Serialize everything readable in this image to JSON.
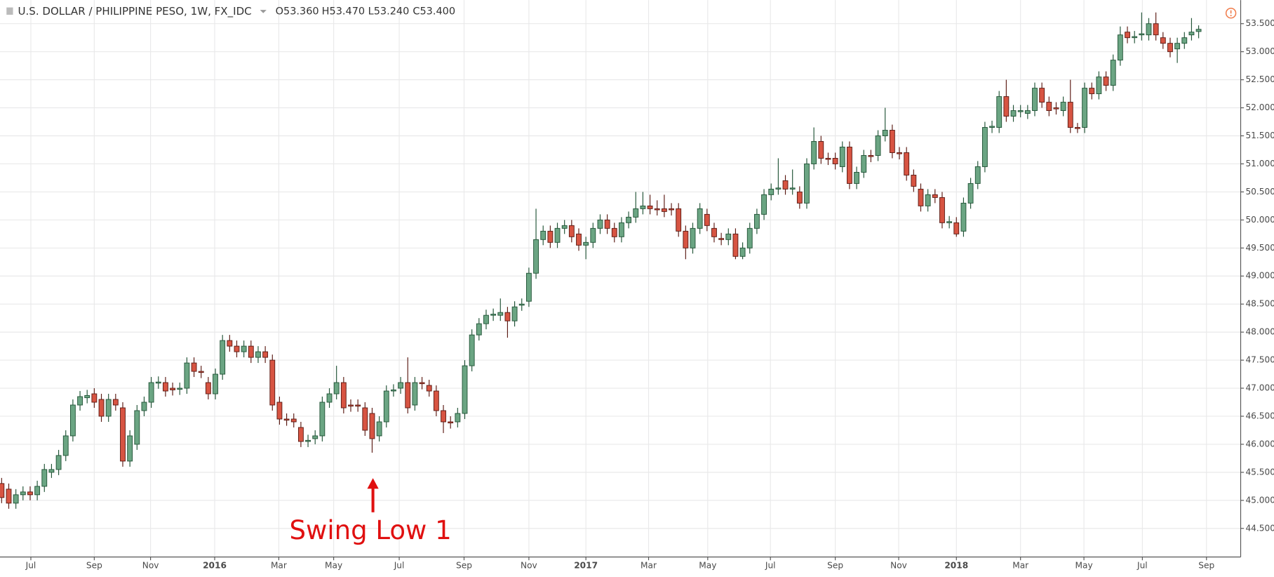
{
  "header": {
    "symbol": "U.S. DOLLAR / PHILIPPINE PESO, 1W, FX_IDC",
    "open": "O53.360",
    "high": "H53.470",
    "low": "L53.240",
    "close": "C53.400"
  },
  "chart_data": {
    "type": "candlestick",
    "annotation": "Swing Low 1",
    "up_color": "#6ba583",
    "down_color": "#d75442",
    "ylim": [
      43.99,
      53.92
    ],
    "yticks": [
      {
        "value": 44.5,
        "label": "44.500"
      },
      {
        "value": 45,
        "label": "45.000"
      },
      {
        "value": 45.5,
        "label": "45.500"
      },
      {
        "value": 46,
        "label": "46.000"
      },
      {
        "value": 46.5,
        "label": "46.500"
      },
      {
        "value": 47,
        "label": "47.000"
      },
      {
        "value": 47.5,
        "label": "47.500"
      },
      {
        "value": 48,
        "label": "48.000"
      },
      {
        "value": 48.5,
        "label": "48.500"
      },
      {
        "value": 49,
        "label": "49.000"
      },
      {
        "value": 49.5,
        "label": "49.500"
      },
      {
        "value": 50,
        "label": "50.000"
      },
      {
        "value": 50.5,
        "label": "50.500"
      },
      {
        "value": 51,
        "label": "51.000"
      },
      {
        "value": 51.5,
        "label": "51.500"
      },
      {
        "value": 52,
        "label": "52.000"
      },
      {
        "value": 52.5,
        "label": "52.500"
      },
      {
        "value": 53,
        "label": "53.000"
      },
      {
        "value": 53.5,
        "label": "53.500"
      }
    ],
    "xlim": [
      -0.23,
      173.9
    ],
    "xticks": [
      {
        "value": 4.1,
        "label": "Jul"
      },
      {
        "value": 13.0,
        "label": "Sep"
      },
      {
        "value": 20.9,
        "label": "Nov"
      },
      {
        "value": 29.9,
        "label": "2016"
      },
      {
        "value": 38.9,
        "label": "Mar"
      },
      {
        "value": 46.6,
        "label": "May"
      },
      {
        "value": 55.8,
        "label": "Jul"
      },
      {
        "value": 64.9,
        "label": "Sep"
      },
      {
        "value": 74.0,
        "label": "Nov"
      },
      {
        "value": 82.0,
        "label": "2017"
      },
      {
        "value": 90.8,
        "label": "Mar"
      },
      {
        "value": 99.1,
        "label": "May"
      },
      {
        "value": 107.9,
        "label": "Jul"
      },
      {
        "value": 117.0,
        "label": "Sep"
      },
      {
        "value": 125.9,
        "label": "Nov"
      },
      {
        "value": 134.0,
        "label": "2018"
      },
      {
        "value": 143.0,
        "label": "Mar"
      },
      {
        "value": 151.9,
        "label": "May"
      },
      {
        "value": 160.1,
        "label": "Jul"
      },
      {
        "value": 169.1,
        "label": "Sep"
      }
    ],
    "open": [
      45.3,
      45.2,
      44.95,
      45.1,
      45.15,
      45.1,
      45.25,
      45.5,
      45.55,
      45.8,
      46.15,
      46.7,
      46.83,
      46.9,
      46.8,
      46.5,
      46.8,
      46.65,
      45.7,
      46.0,
      46.6,
      46.75,
      47.09,
      47.1,
      47.0,
      46.98,
      47.0,
      47.45,
      47.3,
      47.1,
      46.9,
      47.25,
      47.85,
      47.75,
      47.65,
      47.75,
      47.55,
      47.65,
      47.5,
      46.75,
      46.45,
      46.45,
      46.3,
      46.05,
      46.1,
      46.15,
      46.75,
      46.9,
      47.1,
      46.7,
      46.7,
      46.65,
      46.55,
      46.15,
      46.4,
      46.95,
      47.0,
      47.1,
      46.7,
      47.1,
      47.05,
      46.95,
      46.6,
      46.4,
      46.4,
      46.55,
      47.4,
      47.95,
      48.15,
      48.3,
      48.3,
      48.35,
      48.2,
      48.48,
      48.55,
      49.05,
      49.65,
      49.8,
      49.6,
      49.85,
      49.9,
      49.75,
      49.55,
      49.6,
      49.85,
      50.0,
      49.85,
      49.7,
      49.95,
      50.05,
      50.2,
      50.25,
      50.2,
      50.2,
      50.2,
      50.2,
      49.8,
      49.5,
      49.85,
      50.1,
      49.85,
      49.67,
      49.65,
      49.75,
      49.35,
      49.5,
      49.85,
      50.1,
      50.45,
      50.55,
      50.7,
      50.55,
      50.5,
      50.3,
      51.0,
      51.4,
      51.1,
      51.1,
      50.95,
      51.3,
      50.65,
      50.85,
      51.15,
      51.15,
      51.5,
      51.6,
      51.2,
      51.2,
      50.8,
      50.55,
      50.25,
      50.45,
      50.4,
      49.95,
      49.95,
      49.8,
      50.3,
      50.65,
      50.95,
      51.65,
      51.65,
      52.2,
      51.85,
      51.93,
      51.9,
      51.95,
      52.35,
      52.1,
      52.0,
      51.95,
      52.1,
      51.65,
      51.65,
      52.35,
      52.25,
      52.55,
      52.4,
      52.85,
      53.35,
      53.25,
      53.3,
      53.3,
      53.5,
      53.25,
      53.15,
      53.05,
      53.15,
      53.3,
      53.36
    ],
    "high": [
      45.4,
      45.3,
      45.2,
      45.25,
      45.25,
      45.35,
      45.65,
      45.65,
      45.9,
      46.25,
      46.8,
      46.95,
      46.97,
      47.0,
      46.9,
      46.9,
      46.9,
      46.75,
      46.25,
      46.7,
      46.85,
      47.2,
      47.21,
      47.2,
      47.1,
      47.1,
      47.55,
      47.55,
      47.4,
      47.2,
      47.35,
      47.95,
      47.95,
      47.85,
      47.85,
      47.85,
      47.75,
      47.75,
      47.6,
      46.85,
      46.55,
      46.55,
      46.4,
      46.17,
      46.25,
      46.85,
      47.0,
      47.4,
      47.2,
      46.8,
      46.8,
      46.75,
      46.65,
      46.5,
      47.05,
      47.07,
      47.2,
      47.55,
      47.2,
      47.2,
      47.15,
      47.05,
      46.7,
      46.5,
      46.65,
      47.5,
      48.05,
      48.25,
      48.4,
      48.42,
      48.6,
      48.45,
      48.55,
      48.6,
      49.15,
      50.2,
      49.9,
      49.9,
      49.95,
      50.0,
      50.0,
      49.85,
      49.7,
      49.95,
      50.1,
      50.1,
      49.95,
      50.05,
      50.15,
      50.5,
      50.5,
      50.45,
      50.35,
      50.45,
      50.3,
      50.3,
      49.9,
      49.95,
      50.3,
      50.2,
      49.95,
      49.77,
      49.85,
      49.85,
      49.6,
      49.95,
      50.2,
      50.55,
      50.65,
      51.1,
      50.8,
      50.9,
      50.6,
      51.1,
      51.65,
      51.5,
      51.2,
      51.2,
      51.4,
      51.4,
      50.95,
      51.25,
      51.25,
      51.6,
      52.0,
      51.7,
      51.3,
      51.3,
      50.9,
      50.65,
      50.55,
      50.55,
      50.5,
      50.07,
      50.05,
      50.4,
      50.75,
      51.05,
      51.75,
      51.77,
      52.3,
      52.5,
      52.05,
      52.05,
      52.05,
      52.45,
      52.45,
      52.2,
      52.1,
      52.2,
      52.5,
      51.73,
      52.45,
      52.45,
      52.65,
      52.65,
      52.95,
      53.45,
      53.45,
      53.37,
      53.7,
      53.6,
      53.7,
      53.35,
      53.25,
      53.25,
      53.35,
      53.6,
      53.47
    ],
    "low": [
      44.95,
      44.85,
      44.85,
      45.0,
      45.0,
      45.0,
      45.15,
      45.4,
      45.45,
      45.7,
      46.05,
      46.6,
      46.73,
      46.65,
      46.4,
      46.4,
      46.6,
      45.6,
      45.6,
      45.9,
      46.5,
      46.65,
      46.99,
      46.85,
      46.87,
      46.88,
      46.9,
      47.2,
      47.18,
      46.8,
      46.8,
      47.15,
      47.65,
      47.55,
      47.55,
      47.45,
      47.45,
      47.45,
      46.6,
      46.35,
      46.33,
      46.3,
      45.95,
      45.95,
      46.0,
      46.05,
      46.65,
      46.8,
      46.55,
      46.58,
      46.58,
      46.15,
      45.85,
      46.05,
      46.3,
      46.85,
      46.9,
      46.55,
      46.6,
      46.98,
      46.85,
      46.5,
      46.2,
      46.28,
      46.3,
      46.45,
      47.3,
      47.85,
      48.05,
      48.2,
      48.2,
      47.9,
      48.1,
      48.38,
      48.45,
      48.95,
      49.55,
      49.5,
      49.5,
      49.75,
      49.6,
      49.45,
      49.3,
      49.5,
      49.75,
      49.75,
      49.6,
      49.6,
      49.85,
      49.95,
      50.1,
      50.1,
      50.08,
      50.05,
      50.08,
      49.7,
      49.3,
      49.4,
      49.75,
      49.8,
      49.6,
      49.55,
      49.55,
      49.3,
      49.3,
      49.4,
      49.75,
      50.0,
      50.35,
      50.45,
      50.45,
      50.45,
      50.2,
      50.2,
      50.9,
      51.0,
      50.98,
      50.9,
      50.85,
      50.55,
      50.55,
      50.75,
      51.03,
      51.05,
      51.4,
      51.1,
      51.08,
      50.7,
      50.5,
      50.15,
      50.15,
      50.3,
      49.85,
      49.85,
      49.7,
      49.7,
      50.2,
      50.55,
      50.85,
      51.55,
      51.55,
      51.75,
      51.75,
      51.83,
      51.8,
      51.85,
      52.0,
      51.85,
      51.88,
      51.85,
      51.55,
      51.55,
      51.55,
      52.15,
      52.15,
      52.3,
      52.3,
      52.75,
      53.15,
      53.15,
      53.2,
      53.2,
      53.2,
      53.05,
      52.9,
      52.8,
      53.05,
      53.2,
      53.24
    ],
    "close": [
      45.05,
      44.95,
      45.1,
      45.15,
      45.1,
      45.25,
      45.55,
      45.55,
      45.8,
      46.15,
      46.7,
      46.85,
      46.87,
      46.75,
      46.5,
      46.8,
      46.7,
      45.7,
      46.15,
      46.6,
      46.75,
      47.1,
      47.11,
      46.95,
      46.97,
      47.0,
      47.45,
      47.3,
      47.28,
      46.9,
      47.25,
      47.85,
      47.75,
      47.65,
      47.75,
      47.55,
      47.65,
      47.55,
      46.7,
      46.45,
      46.43,
      46.4,
      46.05,
      46.07,
      46.15,
      46.75,
      46.9,
      47.1,
      46.65,
      46.68,
      46.68,
      46.25,
      46.1,
      46.4,
      46.95,
      46.97,
      47.1,
      46.65,
      47.1,
      47.08,
      46.95,
      46.6,
      46.4,
      46.38,
      46.55,
      47.4,
      47.95,
      48.15,
      48.3,
      48.32,
      48.35,
      48.2,
      48.45,
      48.5,
      49.05,
      49.65,
      49.8,
      49.6,
      49.85,
      49.9,
      49.7,
      49.55,
      49.6,
      49.85,
      50.0,
      49.85,
      49.7,
      49.95,
      50.05,
      50.2,
      50.25,
      50.2,
      50.18,
      50.15,
      50.18,
      49.8,
      49.5,
      49.85,
      50.2,
      49.9,
      49.7,
      49.65,
      49.75,
      49.35,
      49.5,
      49.85,
      50.1,
      50.45,
      50.55,
      50.57,
      50.55,
      50.57,
      50.3,
      51.0,
      51.4,
      51.1,
      51.08,
      51.0,
      51.3,
      50.65,
      50.85,
      51.15,
      51.13,
      51.5,
      51.6,
      51.2,
      51.18,
      50.8,
      50.6,
      50.25,
      50.45,
      50.4,
      49.95,
      49.97,
      49.75,
      50.3,
      50.65,
      50.95,
      51.65,
      51.67,
      52.2,
      51.85,
      51.95,
      51.95,
      51.95,
      52.35,
      52.1,
      51.95,
      51.98,
      52.1,
      51.65,
      51.63,
      52.35,
      52.25,
      52.55,
      52.4,
      52.85,
      53.3,
      53.25,
      53.27,
      53.32,
      53.5,
      53.3,
      53.15,
      53.0,
      53.15,
      53.25,
      53.35,
      53.4
    ]
  }
}
